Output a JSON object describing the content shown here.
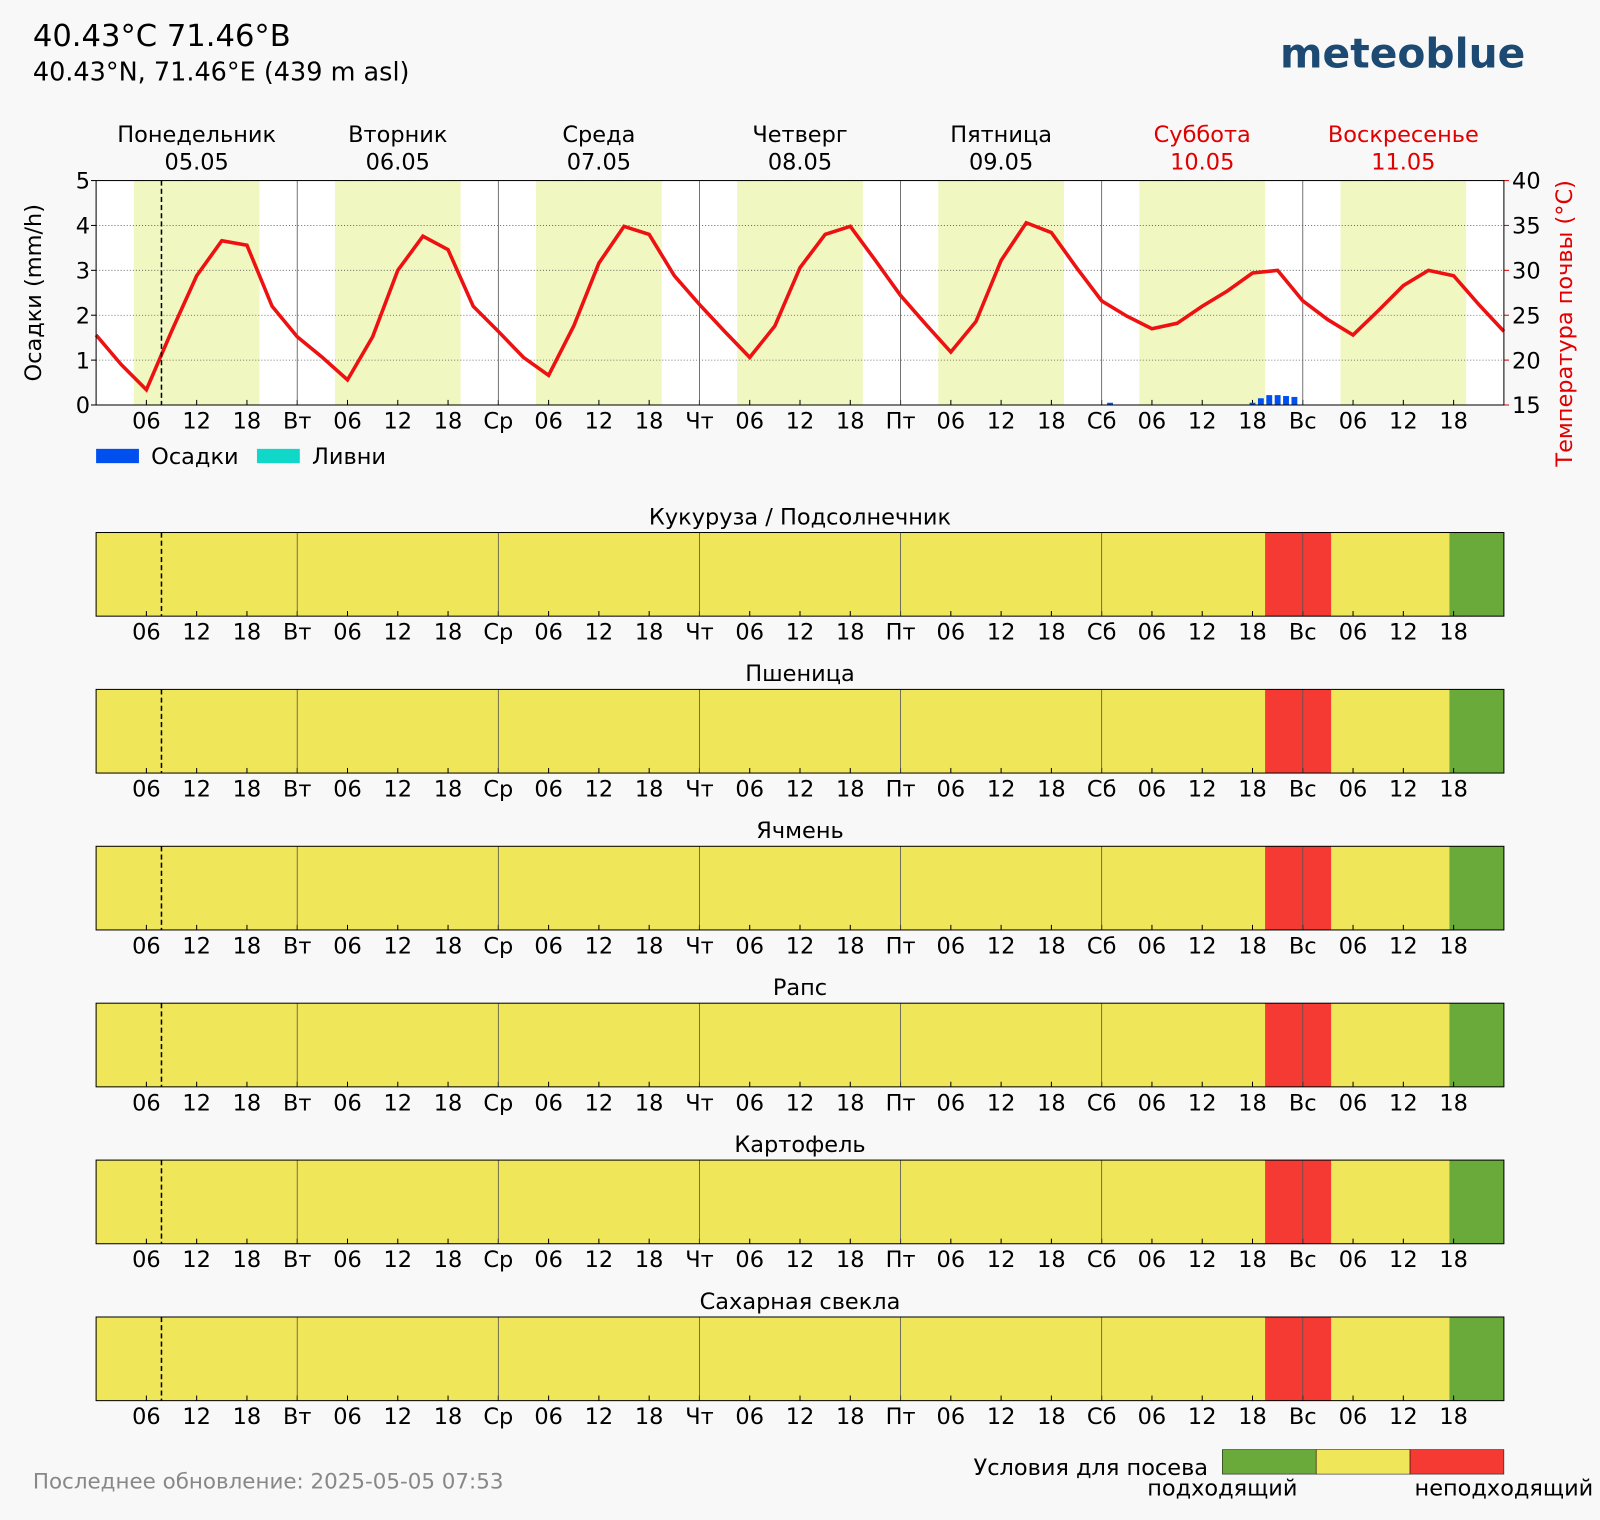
{
  "header": {
    "title": "40.43°C 71.46°В",
    "subtitle": "40.43°N, 71.46°E (439 m asl)",
    "logo": "meteoblue"
  },
  "footer": {
    "updated": "Последнее обновление: 2025-05-05 07:53"
  },
  "chart_data": [
    {
      "type": "line",
      "days": [
        {
          "name": "Понедельник",
          "date": "05.05",
          "color": "#000000"
        },
        {
          "name": "Вторник",
          "date": "06.05",
          "color": "#000000"
        },
        {
          "name": "Среда",
          "date": "07.05",
          "color": "#000000"
        },
        {
          "name": "Четверг",
          "date": "08.05",
          "color": "#000000"
        },
        {
          "name": "Пятница",
          "date": "09.05",
          "color": "#000000"
        },
        {
          "name": "Суббота",
          "date": "10.05",
          "color": "#e00000"
        },
        {
          "name": "Воскресенье",
          "date": "11.05",
          "color": "#e00000"
        }
      ],
      "xlim": [
        0,
        168
      ],
      "xticks": [
        {
          "value": 6,
          "label": "06"
        },
        12,
        18,
        {
          "value": 24,
          "label": "Вт"
        },
        {
          "value": 30,
          "label": "06"
        },
        {
          "value": 36,
          "label": "12"
        },
        {
          "value": 42,
          "label": "18"
        },
        {
          "value": 48,
          "label": "Ср"
        },
        {
          "value": 54,
          "label": "06"
        },
        {
          "value": 60,
          "label": "12"
        },
        {
          "value": 66,
          "label": "18"
        },
        {
          "value": 72,
          "label": "Чт"
        },
        {
          "value": 78,
          "label": "06"
        },
        {
          "value": 84,
          "label": "12"
        },
        {
          "value": 90,
          "label": "18"
        },
        {
          "value": 96,
          "label": "Пт"
        },
        {
          "value": 102,
          "label": "06"
        },
        {
          "value": 108,
          "label": "12"
        },
        {
          "value": 114,
          "label": "18"
        },
        {
          "value": 120,
          "label": "Сб"
        },
        {
          "value": 126,
          "label": "06"
        },
        {
          "value": 132,
          "label": "12"
        },
        {
          "value": 138,
          "label": "18"
        },
        {
          "value": 144,
          "label": "Вс"
        },
        {
          "value": 150,
          "label": "06"
        },
        {
          "value": 156,
          "label": "12"
        },
        {
          "value": 162,
          "label": "18"
        }
      ],
      "ylim": [
        0,
        5
      ],
      "yticks": [
        0,
        1,
        2,
        3,
        4,
        5
      ],
      "ylabel": "Осадки (mm/h)",
      "y2lim": [
        15,
        40
      ],
      "y2ticks": [
        15,
        20,
        25,
        30,
        35,
        40
      ],
      "y2label": "Температура почвы (°C)",
      "y2color": "#e00000",
      "grid": true,
      "now": 7.8,
      "daylight": [
        [
          4.5,
          19.5
        ],
        [
          28.5,
          43.5
        ],
        [
          52.5,
          67.5
        ],
        [
          76.5,
          91.5
        ],
        [
          100.5,
          115.5
        ],
        [
          124.5,
          139.5
        ],
        [
          148.5,
          163.5
        ]
      ],
      "daylight_color": "#f0f7c0",
      "series": [
        {
          "name": "Осадки",
          "color": "#0050f0",
          "type": "bar",
          "x": [
            121,
            138,
            139,
            140,
            141,
            142,
            143
          ],
          "values": [
            0.05,
            0.05,
            0.15,
            0.22,
            0.22,
            0.2,
            0.18
          ]
        },
        {
          "name": "Ливни",
          "color": "#10d8c8",
          "type": "bar",
          "x": [],
          "values": []
        },
        {
          "color": "#ee1111",
          "type": "line",
          "axis": "y2",
          "x": [
            0,
            3,
            6,
            9,
            12,
            15,
            18,
            21,
            24,
            27,
            30,
            33,
            36,
            39,
            42,
            45,
            48,
            51,
            54,
            57,
            60,
            63,
            66,
            69,
            72,
            75,
            78,
            81,
            84,
            87,
            90,
            93,
            96,
            99,
            102,
            105,
            108,
            111,
            114,
            117,
            120,
            123,
            126,
            129,
            132,
            135,
            138,
            141,
            144,
            147,
            150,
            153,
            156,
            159,
            162,
            165,
            168
          ],
          "values": [
            22.8,
            19.5,
            16.7,
            23.2,
            29.4,
            33.3,
            32.8,
            26,
            22.6,
            20.3,
            17.8,
            22.6,
            30,
            33.8,
            32.3,
            26,
            23.2,
            20.3,
            18.3,
            23.8,
            30.8,
            34.9,
            34,
            29.4,
            26.2,
            23.2,
            20.3,
            23.8,
            30.3,
            34,
            34.9,
            31.1,
            27.2,
            24,
            20.9,
            24.3,
            31.1,
            35.3,
            34.2,
            30.3,
            26.6,
            24.9,
            23.5,
            24.1,
            26,
            27.7,
            29.7,
            30,
            26.6,
            24.5,
            22.8,
            25.5,
            28.3,
            30,
            29.4,
            26.2,
            23.2
          ]
        }
      ]
    },
    {
      "type": "timeline",
      "xlim": [
        0,
        168
      ],
      "xticks": [
        {
          "value": 6,
          "label": "06"
        },
        12,
        18,
        {
          "value": 24,
          "label": "Вт"
        },
        {
          "value": 30,
          "label": "06"
        },
        {
          "value": 36,
          "label": "12"
        },
        {
          "value": 42,
          "label": "18"
        },
        {
          "value": 48,
          "label": "Ср"
        },
        {
          "value": 54,
          "label": "06"
        },
        {
          "value": 60,
          "label": "12"
        },
        {
          "value": 66,
          "label": "18"
        },
        {
          "value": 72,
          "label": "Чт"
        },
        {
          "value": 78,
          "label": "06"
        },
        {
          "value": 84,
          "label": "12"
        },
        {
          "value": 90,
          "label": "18"
        },
        {
          "value": 96,
          "label": "Пт"
        },
        {
          "value": 102,
          "label": "06"
        },
        {
          "value": 108,
          "label": "12"
        },
        {
          "value": 114,
          "label": "18"
        },
        {
          "value": 120,
          "label": "Сб"
        },
        {
          "value": 126,
          "label": "06"
        },
        {
          "value": 132,
          "label": "12"
        },
        {
          "value": 138,
          "label": "18"
        },
        {
          "value": 144,
          "label": "Вс"
        },
        {
          "value": 150,
          "label": "06"
        },
        {
          "value": 156,
          "label": "12"
        },
        {
          "value": 162,
          "label": "18"
        }
      ],
      "now": 7.8,
      "panels": [
        {
          "title": "Кукуруза / Подсолнечник",
          "segments": [
            {
              "from": 0,
              "to": 139.5,
              "color": "#f0e65a"
            },
            {
              "from": 139.5,
              "to": 147.4,
              "color": "#f43a32"
            },
            {
              "from": 147.4,
              "to": 161.5,
              "color": "#f0e65a"
            },
            {
              "from": 161.5,
              "to": 168,
              "color": "#6aaa3a"
            }
          ]
        },
        {
          "title": "Пшеница",
          "segments": [
            {
              "from": 0,
              "to": 139.5,
              "color": "#f0e65a"
            },
            {
              "from": 139.5,
              "to": 147.4,
              "color": "#f43a32"
            },
            {
              "from": 147.4,
              "to": 161.5,
              "color": "#f0e65a"
            },
            {
              "from": 161.5,
              "to": 168,
              "color": "#6aaa3a"
            }
          ]
        },
        {
          "title": "Ячмень",
          "segments": [
            {
              "from": 0,
              "to": 139.5,
              "color": "#f0e65a"
            },
            {
              "from": 139.5,
              "to": 147.4,
              "color": "#f43a32"
            },
            {
              "from": 147.4,
              "to": 161.5,
              "color": "#f0e65a"
            },
            {
              "from": 161.5,
              "to": 168,
              "color": "#6aaa3a"
            }
          ]
        },
        {
          "title": "Рапс",
          "segments": [
            {
              "from": 0,
              "to": 139.5,
              "color": "#f0e65a"
            },
            {
              "from": 139.5,
              "to": 147.4,
              "color": "#f43a32"
            },
            {
              "from": 147.4,
              "to": 161.5,
              "color": "#f0e65a"
            },
            {
              "from": 161.5,
              "to": 168,
              "color": "#6aaa3a"
            }
          ]
        },
        {
          "title": "Картофель",
          "segments": [
            {
              "from": 0,
              "to": 139.5,
              "color": "#f0e65a"
            },
            {
              "from": 139.5,
              "to": 147.4,
              "color": "#f43a32"
            },
            {
              "from": 147.4,
              "to": 161.5,
              "color": "#f0e65a"
            },
            {
              "from": 161.5,
              "to": 168,
              "color": "#6aaa3a"
            }
          ]
        },
        {
          "title": "Сахарная свекла",
          "segments": [
            {
              "from": 0,
              "to": 139.5,
              "color": "#f0e65a"
            },
            {
              "from": 139.5,
              "to": 147.4,
              "color": "#f43a32"
            },
            {
              "from": 147.4,
              "to": 161.5,
              "color": "#f0e65a"
            },
            {
              "from": 161.5,
              "to": 168,
              "color": "#6aaa3a"
            }
          ]
        }
      ],
      "legend": {
        "title": "Условия для посева",
        "colors": [
          "#6aaa3a",
          "#f0e65a",
          "#f43a32"
        ],
        "labels": [
          "подходящий",
          "неподходящий"
        ]
      }
    }
  ]
}
